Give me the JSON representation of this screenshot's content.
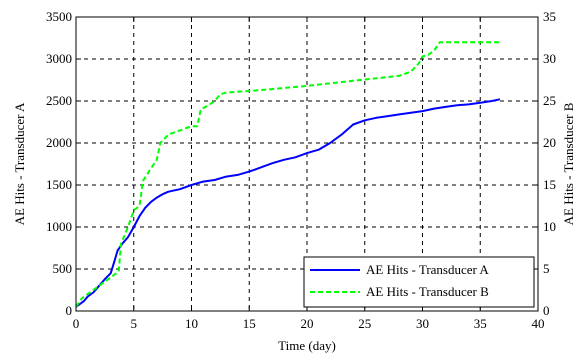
{
  "chart_data": {
    "type": "line",
    "title": "",
    "xlabel": "Time (day)",
    "ylabel_left": "AE Hits - Transducer A",
    "ylabel_right": "AE Hits - Transducer B",
    "xlim": [
      0,
      40
    ],
    "ylim_left": [
      0,
      3500
    ],
    "ylim_right": [
      0,
      35
    ],
    "x_ticks": [
      0,
      5,
      10,
      15,
      20,
      25,
      30,
      35,
      40
    ],
    "y_ticks_left": [
      0,
      500,
      1000,
      1500,
      2000,
      2500,
      3000,
      3500
    ],
    "y_ticks_right": [
      0,
      5,
      10,
      15,
      20,
      25,
      30,
      35
    ],
    "grid": true,
    "legend_position": "bottom-right",
    "series": [
      {
        "name": "AE Hits - Transducer A",
        "axis": "left",
        "color": "#0000ff",
        "style": "solid",
        "x": [
          0,
          0.3,
          0.7,
          1.0,
          1.5,
          2.0,
          2.5,
          3.0,
          3.3,
          3.6,
          4.0,
          4.5,
          5.0,
          5.5,
          6.0,
          6.5,
          7.0,
          7.5,
          8.0,
          9.0,
          10.0,
          11.0,
          12.0,
          13.0,
          14.0,
          15.0,
          16.0,
          17.0,
          18.0,
          19.0,
          20.0,
          21.0,
          22.0,
          23.0,
          24.0,
          25.0,
          26.0,
          27.0,
          28.0,
          29.0,
          30.0,
          31.0,
          32.0,
          33.0,
          34.0,
          35.0,
          36.0,
          36.7
        ],
        "y": [
          50,
          80,
          120,
          170,
          220,
          300,
          380,
          450,
          580,
          720,
          800,
          880,
          1000,
          1130,
          1230,
          1300,
          1350,
          1390,
          1420,
          1450,
          1500,
          1540,
          1560,
          1600,
          1620,
          1660,
          1710,
          1760,
          1800,
          1830,
          1880,
          1920,
          2000,
          2100,
          2220,
          2270,
          2300,
          2320,
          2340,
          2360,
          2380,
          2410,
          2430,
          2450,
          2460,
          2480,
          2500,
          2520
        ]
      },
      {
        "name": "AE Hits - Transducer B",
        "axis": "right",
        "color": "#00ff00",
        "style": "dashed",
        "x": [
          0,
          0.5,
          1.0,
          2.0,
          3.0,
          3.7,
          3.9,
          4.5,
          5.0,
          5.5,
          5.8,
          6.5,
          7.0,
          7.3,
          8.0,
          9.0,
          10.0,
          10.5,
          10.8,
          11.5,
          12.0,
          12.5,
          13.0,
          16.0,
          20.0,
          24.0,
          28.0,
          29.0,
          29.7,
          30.0,
          30.5,
          31.0,
          31.5,
          32.0,
          34.0,
          36.7
        ],
        "y": [
          0.5,
          1.5,
          2.0,
          3.0,
          4.0,
          4.7,
          8.0,
          10.0,
          12.0,
          12.5,
          15.5,
          17.0,
          18.0,
          20.0,
          21.0,
          21.5,
          22.0,
          22.0,
          24.0,
          24.5,
          25.0,
          25.8,
          26.0,
          26.3,
          26.8,
          27.4,
          28.0,
          28.5,
          29.5,
          30.3,
          30.5,
          31.0,
          32.0,
          32.0,
          32.0,
          32.0
        ]
      }
    ]
  }
}
